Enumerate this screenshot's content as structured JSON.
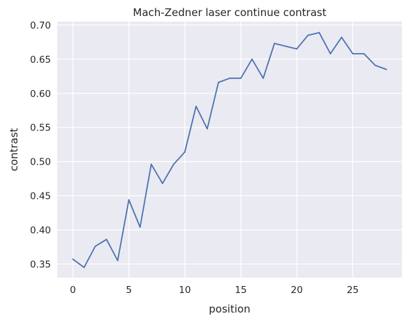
{
  "chart_data": {
    "type": "line",
    "title": "Mach-Zedner laser continue contrast",
    "xlabel": "position",
    "ylabel": "contrast",
    "xlim": [
      -1.4,
      29.4
    ],
    "ylim": [
      0.33,
      0.705
    ],
    "xticks": [
      0,
      5,
      10,
      15,
      20,
      25
    ],
    "yticks": [
      "0.35",
      "0.40",
      "0.45",
      "0.50",
      "0.55",
      "0.60",
      "0.65",
      "0.70"
    ],
    "grid": true,
    "series": [
      {
        "color": "#4c72b0",
        "x": [
          0,
          1,
          2,
          3,
          4,
          5,
          6,
          7,
          8,
          9,
          10,
          11,
          12,
          13,
          14,
          15,
          16,
          17,
          18,
          19,
          20,
          21,
          22,
          23,
          24,
          25,
          26,
          27,
          28
        ],
        "values": [
          0.357,
          0.345,
          0.376,
          0.386,
          0.355,
          0.444,
          0.404,
          0.496,
          0.468,
          0.496,
          0.514,
          0.581,
          0.548,
          0.616,
          0.622,
          0.622,
          0.65,
          0.622,
          0.673,
          0.669,
          0.665,
          0.685,
          0.689,
          0.658,
          0.682,
          0.658,
          0.658,
          0.641,
          0.635
        ]
      }
    ]
  },
  "colors": {
    "plot_background": "#eaeaf2",
    "grid": "#ffffff",
    "text": "#262626"
  }
}
